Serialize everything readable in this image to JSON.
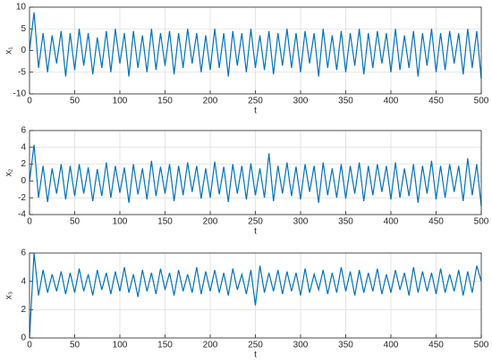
{
  "chart_data": [
    {
      "type": "line",
      "xlabel": "t",
      "ylabel": "x₁",
      "xlim": [
        0,
        500
      ],
      "ylim": [
        -10,
        10
      ],
      "xticks": [
        0,
        50,
        100,
        150,
        200,
        250,
        300,
        350,
        400,
        450,
        500
      ],
      "yticks": [
        -10,
        -5,
        0,
        5,
        10
      ],
      "grid": true,
      "x": [
        0,
        5,
        10,
        15,
        20,
        25,
        30,
        35,
        40,
        45,
        50,
        55,
        60,
        65,
        70,
        75,
        80,
        85,
        90,
        95,
        100,
        105,
        110,
        115,
        120,
        125,
        130,
        135,
        140,
        145,
        150,
        155,
        160,
        165,
        170,
        175,
        180,
        185,
        190,
        195,
        200,
        205,
        210,
        215,
        220,
        225,
        230,
        235,
        240,
        245,
        250,
        255,
        260,
        265,
        270,
        275,
        280,
        285,
        290,
        295,
        300,
        305,
        310,
        315,
        320,
        325,
        330,
        335,
        340,
        345,
        350,
        355,
        360,
        365,
        370,
        375,
        380,
        385,
        390,
        395,
        400,
        405,
        410,
        415,
        420,
        425,
        430,
        435,
        440,
        445,
        450,
        455,
        460,
        465,
        470,
        475,
        480,
        485,
        490,
        495,
        500
      ],
      "series": [
        {
          "color": "#0072bd",
          "values": [
            0,
            8.8,
            -4,
            4,
            -5,
            3.5,
            -3,
            4.5,
            -6,
            4,
            -4.5,
            5,
            -3.5,
            4,
            -5.5,
            3,
            -4,
            4.5,
            -5,
            5,
            -3,
            4,
            -6,
            4.5,
            -4,
            3.5,
            -5,
            5,
            -4.5,
            4,
            -3.5,
            4.5,
            -5.5,
            4,
            -4,
            5,
            -3,
            4,
            -5,
            3.5,
            -4.5,
            5,
            -4,
            4,
            -6,
            4.5,
            -3.5,
            4,
            -5,
            5,
            -4,
            3.5,
            -4.5,
            4.5,
            -5.5,
            4,
            -3.5,
            5,
            -4,
            4,
            -5,
            4.5,
            -3,
            4,
            -6,
            5,
            -4,
            3.5,
            -4.5,
            4.5,
            -5,
            4,
            -3.5,
            5,
            -5.5,
            4,
            -4,
            4.5,
            -3,
            4,
            -5,
            5,
            -4.5,
            3.5,
            -4,
            4.5,
            -6,
            4,
            -3.5,
            5,
            -5,
            4,
            -4.5,
            4.5,
            -3,
            4,
            -5.5,
            5,
            -4,
            4.5,
            -6.5
          ]
        }
      ]
    },
    {
      "type": "line",
      "xlabel": "t",
      "ylabel": "x₂",
      "xlim": [
        0,
        500
      ],
      "ylim": [
        -4,
        6
      ],
      "xticks": [
        0,
        50,
        100,
        150,
        200,
        250,
        300,
        350,
        400,
        450,
        500
      ],
      "yticks": [
        -4,
        -2,
        0,
        2,
        4,
        6
      ],
      "grid": true,
      "x": [
        0,
        5,
        10,
        15,
        20,
        25,
        30,
        35,
        40,
        45,
        50,
        55,
        60,
        65,
        70,
        75,
        80,
        85,
        90,
        95,
        100,
        105,
        110,
        115,
        120,
        125,
        130,
        135,
        140,
        145,
        150,
        155,
        160,
        165,
        170,
        175,
        180,
        185,
        190,
        195,
        200,
        205,
        210,
        215,
        220,
        225,
        230,
        235,
        240,
        245,
        250,
        255,
        260,
        265,
        270,
        275,
        280,
        285,
        290,
        295,
        300,
        305,
        310,
        315,
        320,
        325,
        330,
        335,
        340,
        345,
        350,
        355,
        360,
        365,
        370,
        375,
        380,
        385,
        390,
        395,
        400,
        405,
        410,
        415,
        420,
        425,
        430,
        435,
        440,
        445,
        450,
        455,
        460,
        465,
        470,
        475,
        480,
        485,
        490,
        495,
        500
      ],
      "series": [
        {
          "color": "#0072bd",
          "values": [
            0,
            4.3,
            -2,
            1.8,
            -2.5,
            1.5,
            -1.5,
            2,
            -2.2,
            1.8,
            -1.8,
            2,
            -1.5,
            1.6,
            -2.4,
            1.4,
            -1.8,
            2.2,
            -2,
            1.8,
            -1.4,
            1.6,
            -2.6,
            2,
            -1.6,
            1.5,
            -2.2,
            2.4,
            -1.8,
            1.7,
            -1.5,
            2,
            -2.4,
            1.8,
            -1.7,
            2.2,
            -1.3,
            1.8,
            -2.1,
            1.5,
            -2,
            2.3,
            -1.6,
            1.7,
            -2.5,
            2,
            -1.5,
            1.8,
            -2.2,
            2.1,
            -1.7,
            1.5,
            -2,
            3.3,
            -2.4,
            1.8,
            -1.5,
            2.2,
            -1.8,
            1.7,
            -2.2,
            2,
            -1.3,
            1.8,
            -2.6,
            2.2,
            -1.7,
            1.5,
            -2,
            2,
            -2.1,
            1.8,
            -1.5,
            2.2,
            -2.4,
            1.8,
            -1.7,
            2,
            -1.3,
            1.8,
            -2.2,
            2.2,
            -2,
            1.5,
            -1.8,
            2,
            -2.6,
            1.8,
            -1.5,
            2.4,
            -2.2,
            1.8,
            -2,
            2,
            -1.3,
            1.8,
            -2.4,
            2.7,
            -1.7,
            2,
            -3
          ]
        }
      ]
    },
    {
      "type": "line",
      "xlabel": "t",
      "ylabel": "x₃",
      "xlim": [
        0,
        500
      ],
      "ylim": [
        0,
        6
      ],
      "xticks": [
        0,
        50,
        100,
        150,
        200,
        250,
        300,
        350,
        400,
        450,
        500
      ],
      "yticks": [
        0,
        2,
        4,
        6
      ],
      "grid": true,
      "x": [
        0,
        5,
        10,
        15,
        20,
        25,
        30,
        35,
        40,
        45,
        50,
        55,
        60,
        65,
        70,
        75,
        80,
        85,
        90,
        95,
        100,
        105,
        110,
        115,
        120,
        125,
        130,
        135,
        140,
        145,
        150,
        155,
        160,
        165,
        170,
        175,
        180,
        185,
        190,
        195,
        200,
        205,
        210,
        215,
        220,
        225,
        230,
        235,
        240,
        245,
        250,
        255,
        260,
        265,
        270,
        275,
        280,
        285,
        290,
        295,
        300,
        305,
        310,
        315,
        320,
        325,
        330,
        335,
        340,
        345,
        350,
        355,
        360,
        365,
        370,
        375,
        380,
        385,
        390,
        395,
        400,
        405,
        410,
        415,
        420,
        425,
        430,
        435,
        440,
        445,
        450,
        455,
        460,
        465,
        470,
        475,
        480,
        485,
        490,
        495,
        500
      ],
      "series": [
        {
          "color": "#0072bd",
          "values": [
            0,
            6,
            3,
            4.8,
            3.2,
            4.5,
            3.3,
            4.7,
            3.1,
            4.6,
            3.2,
            4.9,
            3.3,
            4.5,
            3,
            4.8,
            3.4,
            4.6,
            3.1,
            4.7,
            3.3,
            5,
            3.2,
            4.5,
            2.9,
            4.8,
            3.3,
            4.6,
            3.1,
            4.9,
            3.4,
            4.6,
            3,
            4.8,
            3.3,
            4.5,
            3.2,
            5,
            3.1,
            4.7,
            3.3,
            4.8,
            3.2,
            4.6,
            3,
            4.9,
            3.4,
            4.5,
            3.1,
            4.8,
            2.3,
            5.1,
            3.2,
            4.6,
            3.3,
            4.8,
            3.1,
            4.7,
            3.3,
            4.6,
            3,
            4.9,
            3.2,
            4.5,
            3.4,
            4.8,
            3.1,
            4.6,
            3.2,
            5,
            3.3,
            4.7,
            3,
            4.8,
            3.2,
            4.6,
            3.3,
            4.9,
            3.1,
            4.5,
            3.2,
            4.8,
            3.4,
            4.6,
            3,
            5,
            3.2,
            4.7,
            3.3,
            4.6,
            3.1,
            4.9,
            3.2,
            4.5,
            3.3,
            4.8,
            3,
            4.7,
            3.2,
            5.1,
            4
          ]
        }
      ]
    }
  ]
}
